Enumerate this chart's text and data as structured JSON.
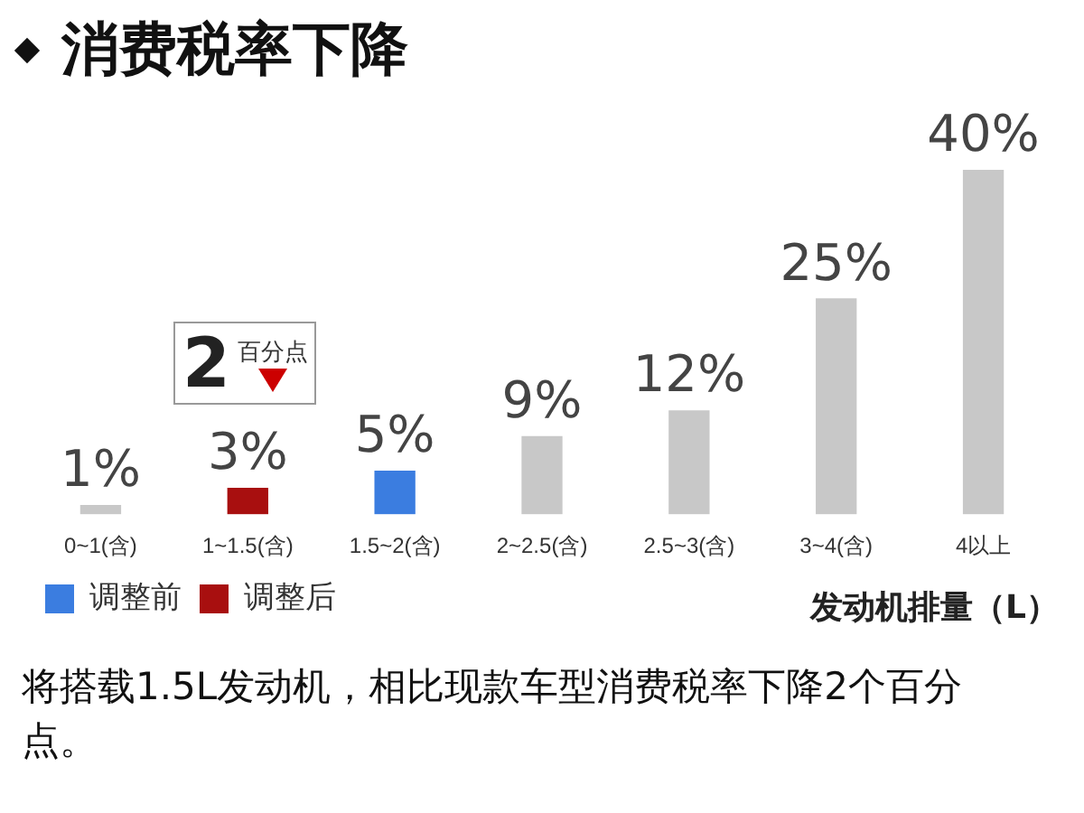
{
  "chart_data": {
    "type": "bar",
    "title": "消费税率下降",
    "xlabel": "发动机排量（L）",
    "categories": [
      "0~1(含)",
      "1~1.5(含)",
      "1.5~2(含)",
      "2~2.5(含)",
      "2.5~3(含)",
      "3~4(含)",
      "4以上"
    ],
    "series": [
      {
        "color": "#c8c8c8",
        "values": [
          1,
          null,
          null,
          9,
          12,
          25,
          40
        ],
        "value_labels": [
          "1%",
          null,
          null,
          "9%",
          "12%",
          "25%",
          "40%"
        ]
      },
      {
        "name": "调整前",
        "color": "#3b7de0",
        "values": [
          null,
          null,
          5,
          null,
          null,
          null,
          null
        ],
        "value_labels": [
          null,
          null,
          "5%",
          null,
          null,
          null,
          null
        ]
      },
      {
        "name": "调整后",
        "color": "#a80f0f",
        "values": [
          null,
          3,
          null,
          null,
          null,
          null,
          null
        ],
        "value_labels": [
          null,
          "3%",
          null,
          null,
          null,
          null,
          null
        ]
      }
    ],
    "legend": "bottom left",
    "grid": false,
    "annotations": [
      "2百分点",
      "将搭载1.5L发动机，相比现款车型消费税率下降2个百分点。"
    ]
  }
}
